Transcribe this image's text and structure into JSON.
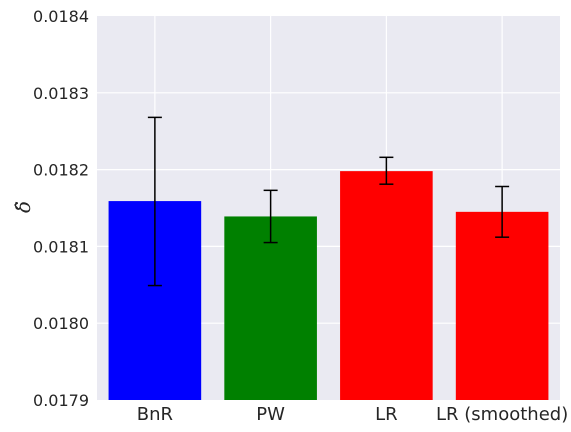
{
  "chart_data": {
    "type": "bar",
    "title": "",
    "xlabel": "",
    "ylabel": "δ̂",
    "ylim": [
      0.0179,
      0.0184
    ],
    "yticks": [
      "0.0179",
      "0.0180",
      "0.0181",
      "0.0182",
      "0.0183",
      "0.0184"
    ],
    "grid": true,
    "background": "#eaeaf2",
    "categories": [
      "BnR",
      "PW",
      "LR",
      "LR (smoothed)"
    ],
    "values": [
      0.018159,
      0.018139,
      0.018198,
      0.018145
    ],
    "errors_low": [
      0.018049,
      0.018105,
      0.018181,
      0.018112
    ],
    "errors_high": [
      0.018268,
      0.018173,
      0.018216,
      0.018178
    ],
    "colors": [
      "#0000ff",
      "#008000",
      "#ff0000",
      "#ff0000"
    ]
  }
}
